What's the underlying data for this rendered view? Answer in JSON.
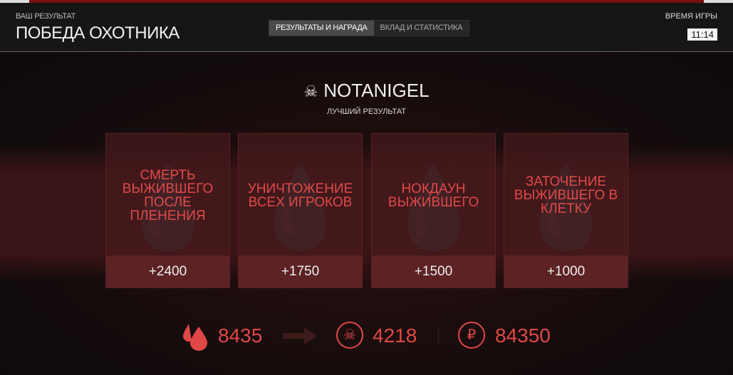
{
  "header": {
    "subtitle": "ВАШ РЕЗУЛЬТАТ",
    "title": "ПОБЕДА ОХОТНИКА",
    "tabs": [
      {
        "label": "РЕЗУЛЬТАТЫ И НАГРАДА",
        "active": true
      },
      {
        "label": "ВКЛАД И СТАТИСТИКА",
        "active": false
      }
    ],
    "time_label": "ВРЕМЯ ИГРЫ",
    "time": "11:14"
  },
  "player": {
    "name": "NOTANIGEL",
    "caption": "ЛУЧШИЙ РЕЗУЛЬТАТ",
    "icon": "skull-icon"
  },
  "cards": [
    {
      "name": "СМЕРТЬ ВЫЖИВШЕГО ПОСЛЕ ПЛЕНЕНИЯ",
      "points": "+2400"
    },
    {
      "name": "УНИЧТОЖЕНИЕ ВСЕХ ИГРОКОВ",
      "points": "+1750"
    },
    {
      "name": "НОКДАУН ВЫЖИВШЕГО",
      "points": "+1500"
    },
    {
      "name": "ЗАТОЧЕНИЕ ВЫЖИВШЕГО В КЛЕТКУ",
      "points": "+1000"
    }
  ],
  "totals": {
    "blood_points": "8435",
    "experience": "4218",
    "rubles": "84350"
  },
  "colors": {
    "accent": "#e04848",
    "background": "#110c0c"
  }
}
